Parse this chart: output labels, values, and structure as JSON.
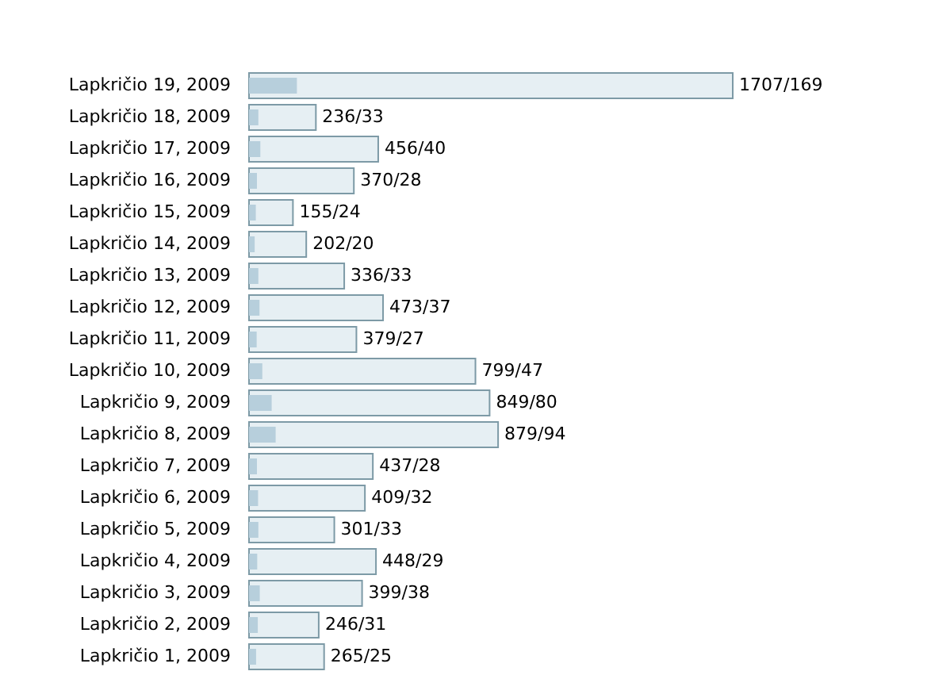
{
  "chart_data": {
    "type": "bar",
    "orientation": "horizontal",
    "categories": [
      "Lapkričio 19, 2009",
      "Lapkričio 18, 2009",
      "Lapkričio 17, 2009",
      "Lapkričio 16, 2009",
      "Lapkričio 15, 2009",
      "Lapkričio 14, 2009",
      "Lapkričio 13, 2009",
      "Lapkričio 12, 2009",
      "Lapkričio 11, 2009",
      "Lapkričio 10, 2009",
      "Lapkričio 9, 2009",
      "Lapkričio 8, 2009",
      "Lapkričio 7, 2009",
      "Lapkričio 6, 2009",
      "Lapkričio 5, 2009",
      "Lapkričio 4, 2009",
      "Lapkričio 3, 2009",
      "Lapkričio 2, 2009",
      "Lapkričio 1, 2009"
    ],
    "series": [
      {
        "color": "#e6eff3",
        "values": [
          1707,
          236,
          456,
          370,
          155,
          202,
          336,
          473,
          379,
          799,
          849,
          879,
          437,
          409,
          301,
          448,
          399,
          246,
          265
        ],
        "value_labels": [
          "1707/169",
          "236/33",
          "456/40",
          "370/28",
          "155/24",
          "202/20",
          "336/33",
          "473/37",
          "379/27",
          "799/47",
          "849/80",
          "879/94",
          "437/28",
          "409/32",
          "301/33",
          "448/29",
          "399/38",
          "246/31",
          "265/25"
        ]
      },
      {
        "color": "#b7cfdc",
        "values": [
          169,
          33,
          40,
          28,
          24,
          20,
          33,
          37,
          27,
          47,
          80,
          94,
          28,
          32,
          33,
          29,
          38,
          31,
          25
        ]
      }
    ],
    "xlim": [
      0,
      1707
    ],
    "tick_labels": "y"
  }
}
